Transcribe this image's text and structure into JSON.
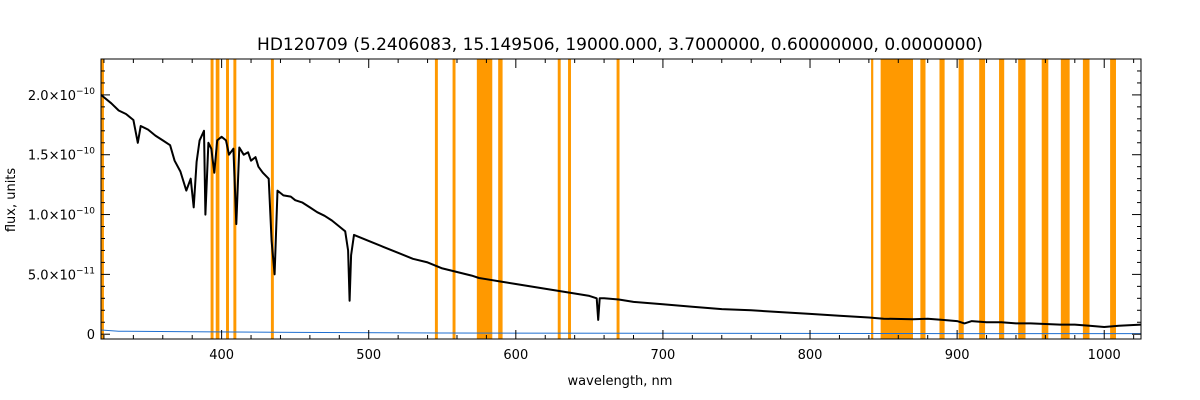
{
  "chart_data": {
    "type": "line",
    "title": "HD120709    (5.2406083, 15.149506, 19000.000, 3.7000000, 0.60000000, 0.0000000)",
    "xlabel": "wavelength, nm",
    "ylabel": "flux, units",
    "xlim": [
      318,
      1025
    ],
    "ylim": [
      -4e-12,
      2.3e-10
    ],
    "x_ticks": [
      400,
      500,
      600,
      700,
      800,
      900,
      1000
    ],
    "x_tick_labels": [
      "400",
      "500",
      "600",
      "700",
      "800",
      "900",
      "1000"
    ],
    "y_ticks": [
      0,
      5e-11,
      1e-10,
      1.5e-10,
      2e-10
    ],
    "y_tick_labels": [
      {
        "mantissa": "0",
        "exponent": ""
      },
      {
        "mantissa": "5.0×10",
        "exponent": "−11"
      },
      {
        "mantissa": "1.0×10",
        "exponent": "−10"
      },
      {
        "mantissa": "1.5×10",
        "exponent": "−10"
      },
      {
        "mantissa": "2.0×10",
        "exponent": "−10"
      }
    ],
    "grid": false,
    "colors": {
      "flux": "#000000",
      "error": "#1f6fd0",
      "mask": "#ff9900"
    },
    "series": [
      {
        "role": "flux",
        "points": [
          [
            318,
            2e-10
          ],
          [
            325,
            1.93e-10
          ],
          [
            330,
            1.87e-10
          ],
          [
            335,
            1.84e-10
          ],
          [
            340,
            1.79e-10
          ],
          [
            343,
            1.6e-10
          ],
          [
            345,
            1.74e-10
          ],
          [
            350,
            1.71e-10
          ],
          [
            355,
            1.66e-10
          ],
          [
            360,
            1.62e-10
          ],
          [
            365,
            1.58e-10
          ],
          [
            368,
            1.45e-10
          ],
          [
            372,
            1.36e-10
          ],
          [
            376,
            1.2e-10
          ],
          [
            379,
            1.3e-10
          ],
          [
            381,
            1.06e-10
          ],
          [
            383,
            1.44e-10
          ],
          [
            385,
            1.62e-10
          ],
          [
            388,
            1.7e-10
          ],
          [
            389,
            1e-10
          ],
          [
            391,
            1.6e-10
          ],
          [
            393,
            1.55e-10
          ],
          [
            395,
            1.35e-10
          ],
          [
            397,
            1.62e-10
          ],
          [
            400,
            1.65e-10
          ],
          [
            403,
            1.62e-10
          ],
          [
            405,
            1.5e-10
          ],
          [
            408,
            1.55e-10
          ],
          [
            410,
            9.2e-11
          ],
          [
            412,
            1.56e-10
          ],
          [
            415,
            1.5e-10
          ],
          [
            418,
            1.52e-10
          ],
          [
            420,
            1.45e-10
          ],
          [
            423,
            1.48e-10
          ],
          [
            425,
            1.4e-10
          ],
          [
            428,
            1.35e-10
          ],
          [
            432,
            1.3e-10
          ],
          [
            434,
            7.8e-11
          ],
          [
            436,
            5e-11
          ],
          [
            438,
            1.2e-10
          ],
          [
            442,
            1.16e-10
          ],
          [
            447,
            1.15e-10
          ],
          [
            450,
            1.12e-10
          ],
          [
            455,
            1.1e-10
          ],
          [
            460,
            1.06e-10
          ],
          [
            465,
            1.02e-10
          ],
          [
            470,
            9.9e-11
          ],
          [
            475,
            9.5e-11
          ],
          [
            480,
            9e-11
          ],
          [
            484,
            8.6e-11
          ],
          [
            486,
            7e-11
          ],
          [
            487,
            2.8e-11
          ],
          [
            488,
            6.6e-11
          ],
          [
            490,
            8.3e-11
          ],
          [
            500,
            7.8e-11
          ],
          [
            510,
            7.3e-11
          ],
          [
            520,
            6.8e-11
          ],
          [
            530,
            6.3e-11
          ],
          [
            540,
            6e-11
          ],
          [
            550,
            5.5e-11
          ],
          [
            560,
            5.2e-11
          ],
          [
            570,
            4.9e-11
          ],
          [
            575,
            4.7e-11
          ],
          [
            580,
            4.6e-11
          ],
          [
            590,
            4.4e-11
          ],
          [
            600,
            4.2e-11
          ],
          [
            610,
            4e-11
          ],
          [
            620,
            3.8e-11
          ],
          [
            630,
            3.6e-11
          ],
          [
            640,
            3.4e-11
          ],
          [
            650,
            3.2e-11
          ],
          [
            655,
            3e-11
          ],
          [
            656,
            1.2e-11
          ],
          [
            657,
            3e-11
          ],
          [
            660,
            3e-11
          ],
          [
            670,
            2.9e-11
          ],
          [
            680,
            2.7e-11
          ],
          [
            700,
            2.5e-11
          ],
          [
            720,
            2.3e-11
          ],
          [
            740,
            2.1e-11
          ],
          [
            760,
            2e-11
          ],
          [
            780,
            1.85e-11
          ],
          [
            800,
            1.7e-11
          ],
          [
            820,
            1.55e-11
          ],
          [
            840,
            1.4e-11
          ],
          [
            850,
            1.3e-11
          ],
          [
            870,
            1.25e-11
          ],
          [
            880,
            1.3e-11
          ],
          [
            890,
            1.2e-11
          ],
          [
            900,
            1.1e-11
          ],
          [
            905,
            9e-12
          ],
          [
            910,
            1.1e-11
          ],
          [
            920,
            1e-11
          ],
          [
            930,
            1e-11
          ],
          [
            940,
            9e-12
          ],
          [
            950,
            9e-12
          ],
          [
            960,
            8.5e-12
          ],
          [
            970,
            8e-12
          ],
          [
            980,
            8e-12
          ],
          [
            990,
            7e-12
          ],
          [
            1000,
            6e-12
          ],
          [
            1010,
            7e-12
          ],
          [
            1025,
            8e-12
          ]
        ]
      },
      {
        "role": "error",
        "points": [
          [
            318,
            3.5e-12
          ],
          [
            330,
            2.5e-12
          ],
          [
            380,
            2e-12
          ],
          [
            450,
            1.5e-12
          ],
          [
            550,
            1e-12
          ],
          [
            700,
            8e-13
          ],
          [
            850,
            6e-13
          ],
          [
            900,
            5e-13
          ],
          [
            1025,
            5e-13
          ]
        ]
      }
    ],
    "masked_regions": [
      [
        318,
        320
      ],
      [
        392.5,
        394.5
      ],
      [
        396,
        398.5
      ],
      [
        403,
        405
      ],
      [
        408,
        410
      ],
      [
        433.5,
        435.5
      ],
      [
        545,
        547
      ],
      [
        557,
        559
      ],
      [
        573.5,
        584
      ],
      [
        588,
        591
      ],
      [
        628.5,
        630.5
      ],
      [
        635.5,
        637.5
      ],
      [
        668.5,
        670.5
      ],
      [
        841.5,
        843
      ],
      [
        848,
        870
      ],
      [
        875,
        878.5
      ],
      [
        888,
        891.5
      ],
      [
        901,
        904.5
      ],
      [
        915,
        919
      ],
      [
        928.5,
        932
      ],
      [
        941.5,
        946.5
      ],
      [
        957.5,
        962
      ],
      [
        970.5,
        976.5
      ],
      [
        985.5,
        990
      ],
      [
        1004,
        1008
      ]
    ]
  }
}
